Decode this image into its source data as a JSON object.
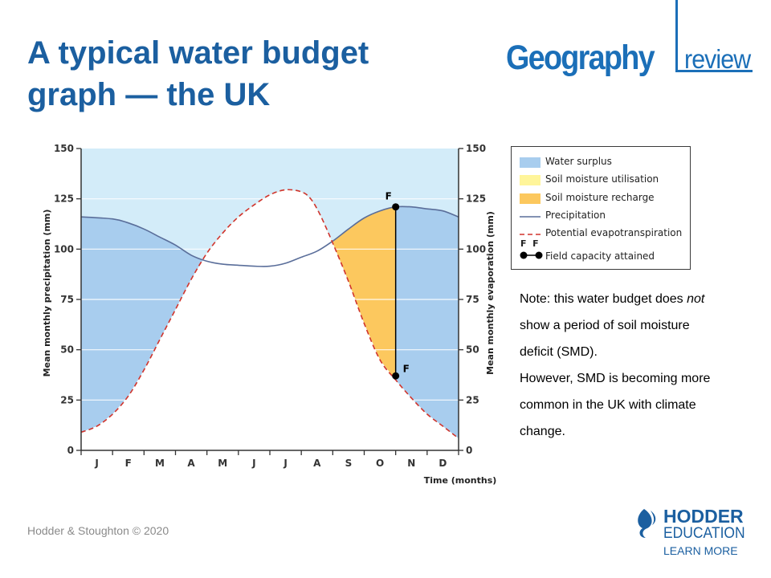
{
  "title": {
    "line1": "A typical water budget",
    "line2": "graph — the UK"
  },
  "brand": {
    "geography": "Geography",
    "review": "review"
  },
  "legend": {
    "items": [
      {
        "label": "Water surplus",
        "symbol": "fill",
        "color": "#a8cdee"
      },
      {
        "label": "Soil moisture utilisation",
        "symbol": "fill",
        "color": "#fff59a"
      },
      {
        "label": "Soil moisture recharge",
        "symbol": "fill",
        "color": "#fcc85e"
      },
      {
        "label": "Precipitation",
        "symbol": "solid-line",
        "color": "#5a6e9a"
      },
      {
        "label": "Potential evapotranspiration",
        "symbol": "dashed-line",
        "color": "#d0342c"
      },
      {
        "label": "Field capacity attained",
        "symbol": "dumbbell",
        "marker": "F  F",
        "color": "#000000"
      }
    ]
  },
  "note": {
    "line1_pre": "Note: this water budget does ",
    "line1_em": "not",
    "line2": "show a period of soil moisture",
    "line3": "deficit (SMD).",
    "line4": "However,  SMD is becoming more",
    "line5": "common in the UK with climate",
    "line6": "change."
  },
  "footer": {
    "copyright": "Hodder & Stoughton © 2020"
  },
  "hodder": {
    "name": "HODDER",
    "sub": "EDUCATION",
    "learn": "LEARN MORE"
  },
  "chart_data": {
    "type": "area",
    "title": "",
    "xlabel": "Time (months)",
    "ylabel_left": "Mean monthly precipitation (mm)",
    "ylabel_right": "Mean monthly evaporation (mm)",
    "ylim": [
      0,
      150
    ],
    "yticks": [
      0,
      25,
      50,
      75,
      100,
      125,
      150
    ],
    "categories": [
      "J",
      "F",
      "M",
      "A",
      "M",
      "J",
      "J",
      "A",
      "S",
      "O",
      "N",
      "D"
    ],
    "x_start": 0,
    "x_end": 12,
    "series": [
      {
        "name": "Precipitation",
        "style": "solid",
        "color": "#5a6e9a",
        "x": [
          0,
          1,
          1.5,
          2,
          2.5,
          3,
          3.5,
          4,
          4.5,
          5,
          5.5,
          6,
          6.5,
          7,
          7.5,
          8,
          8.5,
          9,
          9.5,
          10,
          10.5,
          11,
          11.5,
          12
        ],
        "values": [
          116,
          115,
          113,
          110,
          106,
          102,
          97,
          94,
          92.5,
          92,
          91.5,
          91.5,
          93,
          96,
          99,
          104,
          110,
          115.5,
          119,
          121,
          121,
          120,
          119,
          116
        ]
      },
      {
        "name": "Potential evapotranspiration",
        "style": "dashed",
        "color": "#d0342c",
        "x": [
          0,
          0.5,
          1,
          1.5,
          2,
          2.5,
          3,
          3.5,
          4,
          4.5,
          5,
          5.5,
          6,
          6.5,
          7,
          7.3,
          7.6,
          8,
          8.5,
          9,
          9.5,
          10,
          10.5,
          11,
          11.5,
          12
        ],
        "values": [
          9,
          12,
          18,
          27,
          40,
          55,
          70,
          85,
          98,
          108,
          116,
          122,
          127,
          129.5,
          128.5,
          125,
          117,
          103,
          84,
          63,
          45,
          35,
          26,
          18,
          12,
          6
        ]
      }
    ],
    "regions": [
      {
        "name": "Water surplus",
        "color": "#a8cdee"
      },
      {
        "name": "Soil moisture utilisation",
        "color": "#fff59a"
      },
      {
        "name": "Soil moisture recharge",
        "color": "#fcc85e"
      }
    ],
    "field_capacity": {
      "x": 10,
      "y_top": 121,
      "y_bottom": 37,
      "label_top": "F",
      "label_bottom": "F"
    },
    "background_color": "#d3ecf9"
  }
}
